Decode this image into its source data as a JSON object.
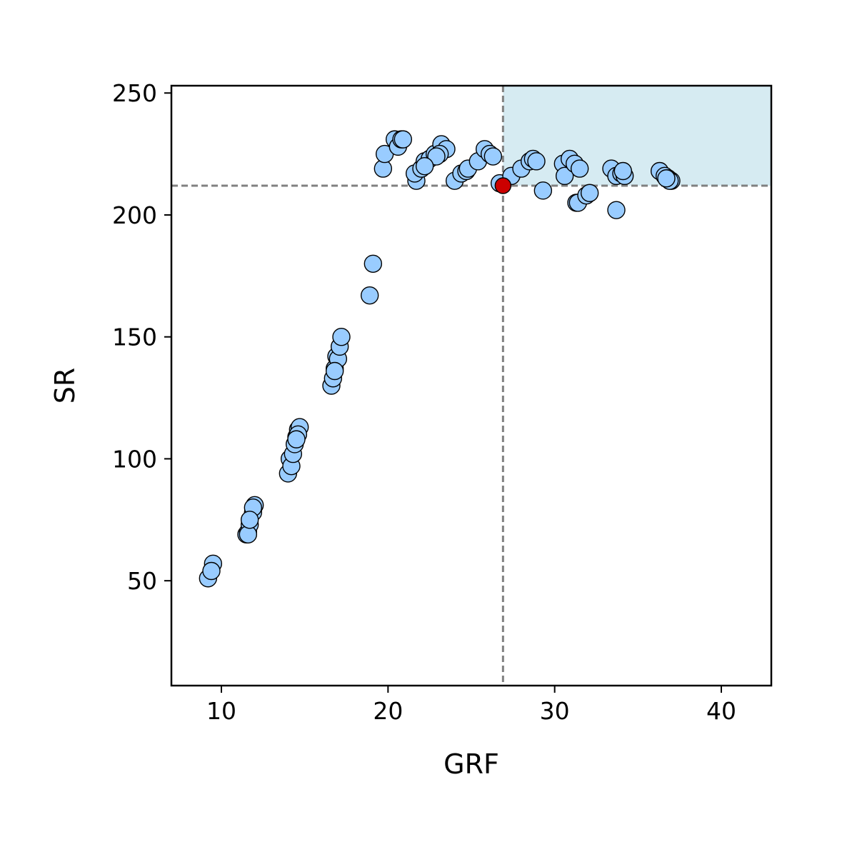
{
  "chart_data": {
    "type": "scatter",
    "xlabel": "GRF",
    "ylabel": "SR",
    "xlim": [
      7,
      43
    ],
    "ylim": [
      7,
      253
    ],
    "xticks": [
      10,
      20,
      30,
      40
    ],
    "yticks": [
      50,
      100,
      150,
      200,
      250
    ],
    "grid": false,
    "point_color": "#99ccff",
    "point_edge_color": "#000000",
    "highlight_color": "#cc0000",
    "region_color": "#add8e6",
    "reference_line_color": "#808080",
    "threshold": {
      "x": 26.9,
      "y": 212
    },
    "highlight_point": {
      "x": 26.9,
      "y": 212
    },
    "points": [
      {
        "x": 9.2,
        "y": 51
      },
      {
        "x": 9.5,
        "y": 57
      },
      {
        "x": 9.4,
        "y": 54
      },
      {
        "x": 11.5,
        "y": 69
      },
      {
        "x": 11.6,
        "y": 70
      },
      {
        "x": 11.7,
        "y": 73
      },
      {
        "x": 11.6,
        "y": 69
      },
      {
        "x": 11.9,
        "y": 78
      },
      {
        "x": 12.0,
        "y": 81
      },
      {
        "x": 11.9,
        "y": 80
      },
      {
        "x": 11.7,
        "y": 75
      },
      {
        "x": 14.0,
        "y": 94
      },
      {
        "x": 14.1,
        "y": 100
      },
      {
        "x": 14.2,
        "y": 97
      },
      {
        "x": 14.3,
        "y": 102
      },
      {
        "x": 14.4,
        "y": 106
      },
      {
        "x": 14.5,
        "y": 109
      },
      {
        "x": 14.6,
        "y": 112
      },
      {
        "x": 14.7,
        "y": 113
      },
      {
        "x": 14.6,
        "y": 110
      },
      {
        "x": 14.5,
        "y": 108
      },
      {
        "x": 16.6,
        "y": 130
      },
      {
        "x": 16.7,
        "y": 133
      },
      {
        "x": 16.8,
        "y": 137
      },
      {
        "x": 16.9,
        "y": 142
      },
      {
        "x": 17.0,
        "y": 141
      },
      {
        "x": 17.1,
        "y": 146
      },
      {
        "x": 17.2,
        "y": 150
      },
      {
        "x": 16.8,
        "y": 136
      },
      {
        "x": 18.9,
        "y": 167
      },
      {
        "x": 19.1,
        "y": 180
      },
      {
        "x": 19.7,
        "y": 219
      },
      {
        "x": 19.8,
        "y": 225
      },
      {
        "x": 20.4,
        "y": 231
      },
      {
        "x": 20.6,
        "y": 228
      },
      {
        "x": 20.8,
        "y": 231
      },
      {
        "x": 20.9,
        "y": 231
      },
      {
        "x": 21.7,
        "y": 214
      },
      {
        "x": 21.6,
        "y": 217
      },
      {
        "x": 22.0,
        "y": 219
      },
      {
        "x": 22.2,
        "y": 222
      },
      {
        "x": 22.5,
        "y": 223
      },
      {
        "x": 22.8,
        "y": 225
      },
      {
        "x": 23.2,
        "y": 229
      },
      {
        "x": 23.5,
        "y": 227
      },
      {
        "x": 23.1,
        "y": 225
      },
      {
        "x": 22.9,
        "y": 224
      },
      {
        "x": 22.2,
        "y": 220
      },
      {
        "x": 24.0,
        "y": 214
      },
      {
        "x": 24.4,
        "y": 217
      },
      {
        "x": 24.7,
        "y": 218
      },
      {
        "x": 24.8,
        "y": 219
      },
      {
        "x": 25.4,
        "y": 222
      },
      {
        "x": 25.8,
        "y": 227
      },
      {
        "x": 26.1,
        "y": 225
      },
      {
        "x": 26.3,
        "y": 224
      },
      {
        "x": 26.7,
        "y": 213
      },
      {
        "x": 27.4,
        "y": 216
      },
      {
        "x": 28.0,
        "y": 219
      },
      {
        "x": 28.5,
        "y": 222
      },
      {
        "x": 28.7,
        "y": 223
      },
      {
        "x": 28.9,
        "y": 222
      },
      {
        "x": 29.3,
        "y": 210
      },
      {
        "x": 30.5,
        "y": 221
      },
      {
        "x": 30.6,
        "y": 216
      },
      {
        "x": 30.9,
        "y": 223
      },
      {
        "x": 31.2,
        "y": 221
      },
      {
        "x": 31.5,
        "y": 219
      },
      {
        "x": 31.3,
        "y": 205
      },
      {
        "x": 31.4,
        "y": 205
      },
      {
        "x": 31.9,
        "y": 208
      },
      {
        "x": 32.1,
        "y": 209
      },
      {
        "x": 33.4,
        "y": 219
      },
      {
        "x": 33.7,
        "y": 216
      },
      {
        "x": 34.0,
        "y": 217
      },
      {
        "x": 34.2,
        "y": 216
      },
      {
        "x": 34.1,
        "y": 218
      },
      {
        "x": 33.7,
        "y": 202
      },
      {
        "x": 36.3,
        "y": 218
      },
      {
        "x": 36.6,
        "y": 216
      },
      {
        "x": 36.8,
        "y": 215
      },
      {
        "x": 37.0,
        "y": 214
      },
      {
        "x": 36.9,
        "y": 214
      },
      {
        "x": 36.7,
        "y": 215
      }
    ]
  }
}
